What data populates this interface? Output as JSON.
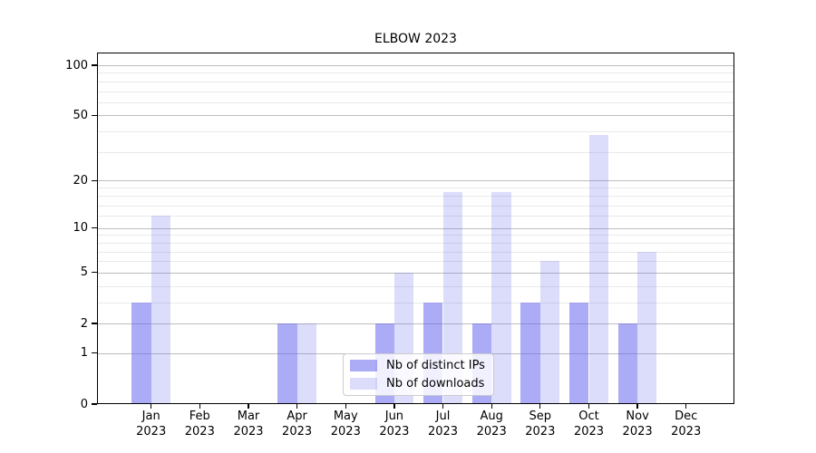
{
  "title": "ELBOW 2023",
  "chart_data": {
    "type": "bar",
    "title": "ELBOW 2023",
    "categories": [
      "Jan",
      "Feb",
      "Mar",
      "Apr",
      "May",
      "Jun",
      "Jul",
      "Aug",
      "Sep",
      "Oct",
      "Nov",
      "Dec"
    ],
    "year_label": "2023",
    "series": [
      {
        "name": "Nb of distinct IPs",
        "color": "#6666ee",
        "alpha": 0.55,
        "values": [
          3,
          0,
          0,
          2,
          0,
          2,
          3,
          2,
          3,
          3,
          2,
          0
        ]
      },
      {
        "name": "Nb of downloads",
        "color": "#6666ee",
        "alpha": 0.23,
        "values": [
          12,
          0,
          0,
          2,
          0,
          5,
          17,
          17,
          6,
          38,
          7,
          0
        ]
      }
    ],
    "xlabel": "",
    "ylabel": "",
    "yscale": "log1p",
    "ylim": [
      0,
      118
    ],
    "yticks": [
      100,
      50,
      20,
      10,
      5,
      2,
      1,
      0
    ],
    "minor_yticks": [
      3,
      4,
      6,
      7,
      8,
      9,
      12,
      14,
      16,
      18,
      30,
      40,
      60,
      70,
      80,
      90
    ],
    "grid": "horizontal",
    "legend_position": "lower center"
  },
  "colors": {
    "bar_base": "#6666ee",
    "bar_dark_flat": "#abaaf6",
    "bar_light_flat": "#dcdcf8",
    "major_grid": "#bdbdbd",
    "minor_grid": "#e9e9e9",
    "axis": "#000000",
    "legend_border": "#cccccc"
  }
}
